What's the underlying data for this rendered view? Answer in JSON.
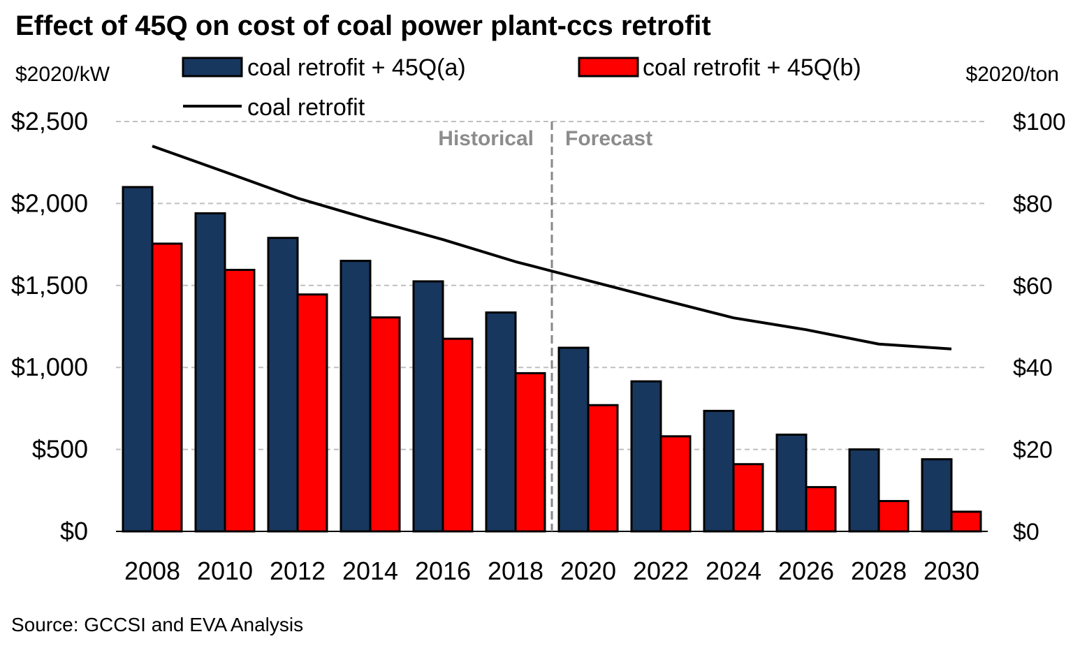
{
  "chart_data": {
    "type": "bar",
    "title": "Effect of 45Q on cost of coal power plant-ccs retrofit",
    "ylabel": "$2020/kW",
    "y2label": "$2020/ton",
    "source": "Source: GCCSI and EVA Analysis",
    "categories": [
      "2008",
      "2010",
      "2012",
      "2014",
      "2016",
      "2018",
      "2020",
      "2022",
      "2024",
      "2026",
      "2028",
      "2030"
    ],
    "ylim": [
      0,
      2500
    ],
    "y2lim": [
      0,
      100
    ],
    "yticks": [
      "$0",
      "$500",
      "$1,000",
      "$1,500",
      "$2,000",
      "$2,500"
    ],
    "y2ticks": [
      "$0",
      "$20",
      "$40",
      "$60",
      "$80",
      "$100"
    ],
    "grid": true,
    "legend_position": "top",
    "annotations": {
      "historical": "Historical",
      "forecast": "Forecast",
      "divider_between": [
        "2018",
        "2020"
      ]
    },
    "series": [
      {
        "name": "coal retrofit + 45Q(a)",
        "type": "bar",
        "axis": "left",
        "color": "#17375e",
        "values": [
          2100,
          1940,
          1790,
          1650,
          1525,
          1335,
          1120,
          915,
          735,
          590,
          500,
          440
        ]
      },
      {
        "name": "coal retrofit + 45Q(b)",
        "type": "bar",
        "axis": "left",
        "color": "#ff0000",
        "values": [
          1755,
          1595,
          1445,
          1305,
          1175,
          965,
          770,
          580,
          410,
          270,
          185,
          120
        ]
      },
      {
        "name": "coal retrofit",
        "type": "line",
        "axis": "right",
        "color": "#000000",
        "values": [
          94,
          87.7,
          81.3,
          76.1,
          71.2,
          65.8,
          61.2,
          56.6,
          52.1,
          49.2,
          45.7,
          44.5
        ]
      }
    ]
  }
}
